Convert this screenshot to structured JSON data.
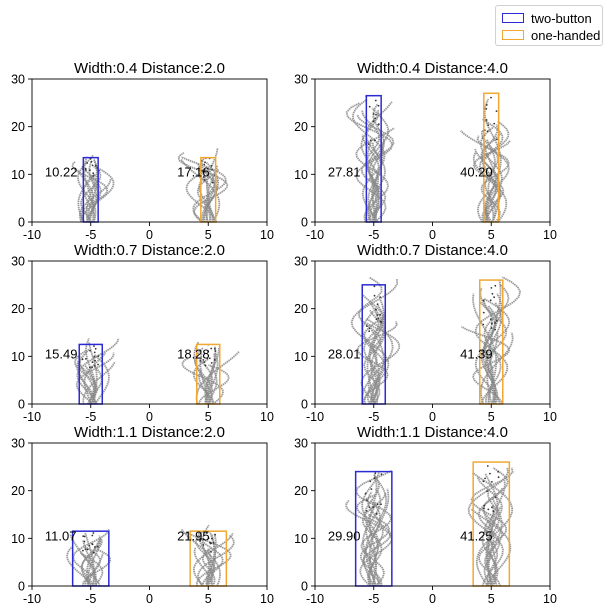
{
  "legend": {
    "items": [
      {
        "label": "two-button",
        "color": "#2b2bd6"
      },
      {
        "label": "one-handed",
        "color": "#f0a830"
      }
    ]
  },
  "chart_data": [
    {
      "type": "scatter",
      "title": "Width:0.4   Distance:2.0",
      "xlim": [
        -10,
        10
      ],
      "ylim": [
        0,
        30
      ],
      "xticks": [
        -10,
        -5,
        0,
        5,
        10
      ],
      "yticks": [
        0,
        10,
        20,
        30
      ],
      "series": [
        {
          "name": "two-button",
          "center": -5,
          "width": 0.4,
          "target_height": 13.5,
          "trace_max": 15,
          "label": "10.22"
        },
        {
          "name": "one-handed",
          "center": 5,
          "width": 0.4,
          "target_height": 13.5,
          "trace_max": 16,
          "label": "17.16"
        }
      ]
    },
    {
      "type": "scatter",
      "title": "Width:0.4   Distance:4.0",
      "xlim": [
        -10,
        10
      ],
      "ylim": [
        0,
        30
      ],
      "xticks": [
        -10,
        -5,
        0,
        5,
        10
      ],
      "yticks": [
        0,
        10,
        20,
        30
      ],
      "series": [
        {
          "name": "two-button",
          "center": -5,
          "width": 0.4,
          "target_height": 26.5,
          "trace_max": 26,
          "label": "27.81"
        },
        {
          "name": "one-handed",
          "center": 5,
          "width": 0.4,
          "target_height": 27,
          "trace_max": 26,
          "label": "40.20"
        }
      ]
    },
    {
      "type": "scatter",
      "title": "Width:0.7   Distance:2.0",
      "xlim": [
        -10,
        10
      ],
      "ylim": [
        0,
        30
      ],
      "xticks": [
        -10,
        -5,
        0,
        5,
        10
      ],
      "yticks": [
        0,
        10,
        20,
        30
      ],
      "series": [
        {
          "name": "two-button",
          "center": -5,
          "width": 0.7,
          "target_height": 12.5,
          "trace_max": 14,
          "label": "15.49"
        },
        {
          "name": "one-handed",
          "center": 5,
          "width": 0.7,
          "target_height": 12.5,
          "trace_max": 13,
          "label": "18.28"
        }
      ]
    },
    {
      "type": "scatter",
      "title": "Width:0.7   Distance:4.0",
      "xlim": [
        -10,
        10
      ],
      "ylim": [
        0,
        30
      ],
      "xticks": [
        -10,
        -5,
        0,
        5,
        10
      ],
      "yticks": [
        0,
        10,
        20,
        30
      ],
      "series": [
        {
          "name": "two-button",
          "center": -5,
          "width": 0.7,
          "target_height": 25,
          "trace_max": 27,
          "label": "28.01"
        },
        {
          "name": "one-handed",
          "center": 5,
          "width": 0.7,
          "target_height": 26,
          "trace_max": 27,
          "label": "41.39"
        }
      ]
    },
    {
      "type": "scatter",
      "title": "Width:1.1   Distance:2.0",
      "xlim": [
        -10,
        10
      ],
      "ylim": [
        0,
        30
      ],
      "xticks": [
        -10,
        -5,
        0,
        5,
        10
      ],
      "yticks": [
        0,
        10,
        20,
        30
      ],
      "series": [
        {
          "name": "two-button",
          "center": -5,
          "width": 1.1,
          "target_height": 11.5,
          "trace_max": 12,
          "label": "11.07"
        },
        {
          "name": "one-handed",
          "center": 5,
          "width": 1.1,
          "target_height": 11.5,
          "trace_max": 14,
          "label": "21.95"
        }
      ]
    },
    {
      "type": "scatter",
      "title": "Width:1.1   Distance:4.0",
      "xlim": [
        -10,
        10
      ],
      "ylim": [
        0,
        30
      ],
      "xticks": [
        -10,
        -5,
        0,
        5,
        10
      ],
      "yticks": [
        0,
        10,
        20,
        30
      ],
      "series": [
        {
          "name": "two-button",
          "center": -5,
          "width": 1.1,
          "target_height": 24,
          "trace_max": 25,
          "label": "29.90"
        },
        {
          "name": "one-handed",
          "center": 5,
          "width": 1.1,
          "target_height": 26,
          "trace_max": 26,
          "label": "41.25"
        }
      ]
    }
  ]
}
